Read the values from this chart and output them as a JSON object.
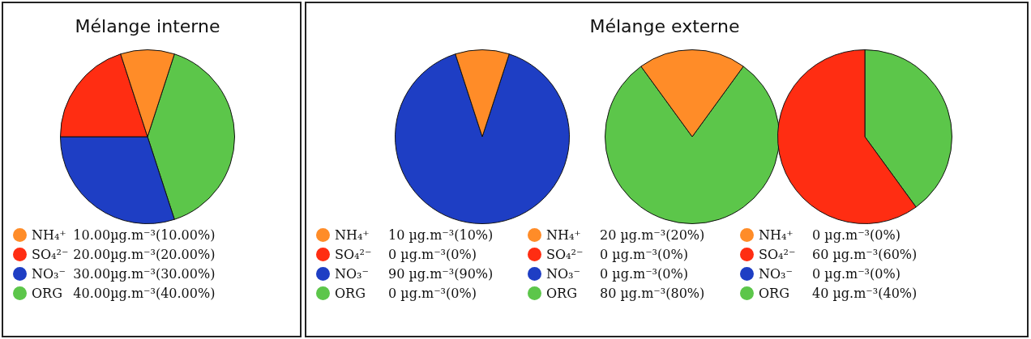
{
  "chart_data": [
    {
      "type": "pie",
      "title": "Mélange interne",
      "legend": "bottom",
      "categories": [
        "NH₄⁺",
        "SO₄²⁻",
        "NO₃⁻",
        "ORG"
      ],
      "values": [
        10,
        20,
        30,
        40
      ],
      "colors": [
        "#ff8c28",
        "#ff2d12",
        "#1e3ec4",
        "#5cc64a"
      ],
      "value_labels": [
        "10.00µg.m⁻³(10.00%)",
        "20.00µg.m⁻³(20.00%)",
        "30.00µg.m⁻³(30.00%)",
        "40.00µg.m⁻³(40.00%)"
      ]
    },
    {
      "type": "pie",
      "legend": "bottom",
      "categories": [
        "NH₄⁺",
        "SO₄²⁻",
        "NO₃⁻",
        "ORG"
      ],
      "values": [
        10,
        0,
        90,
        0
      ],
      "colors": [
        "#ff8c28",
        "#ff2d12",
        "#1e3ec4",
        "#5cc64a"
      ],
      "value_labels": [
        "10 µg.m⁻³(10%)",
        "0 µg.m⁻³(0%)",
        "90 µg.m⁻³(90%)",
        "0 µg.m⁻³(0%)"
      ]
    },
    {
      "type": "pie",
      "legend": "bottom",
      "title": "Mélange externe",
      "categories": [
        "NH₄⁺",
        "SO₄²⁻",
        "NO₃⁻",
        "ORG"
      ],
      "values": [
        20,
        0,
        0,
        80
      ],
      "colors": [
        "#ff8c28",
        "#ff2d12",
        "#1e3ec4",
        "#5cc64a"
      ],
      "value_labels": [
        "20 µg.m⁻³(20%)",
        "0 µg.m⁻³(0%)",
        "0 µg.m⁻³(0%)",
        "80 µg.m⁻³(80%)"
      ]
    },
    {
      "type": "pie",
      "legend": "bottom",
      "categories": [
        "NH₄⁺",
        "SO₄²⁻",
        "NO₃⁻",
        "ORG"
      ],
      "values": [
        0,
        60,
        0,
        40
      ],
      "colors": [
        "#ff8c28",
        "#ff2d12",
        "#1e3ec4",
        "#5cc64a"
      ],
      "value_labels": [
        "0 µg.m⁻³(0%)",
        "60 µg.m⁻³(60%)",
        "0 µg.m⁻³(0%)",
        "40 µg.m⁻³(40%)"
      ]
    }
  ]
}
